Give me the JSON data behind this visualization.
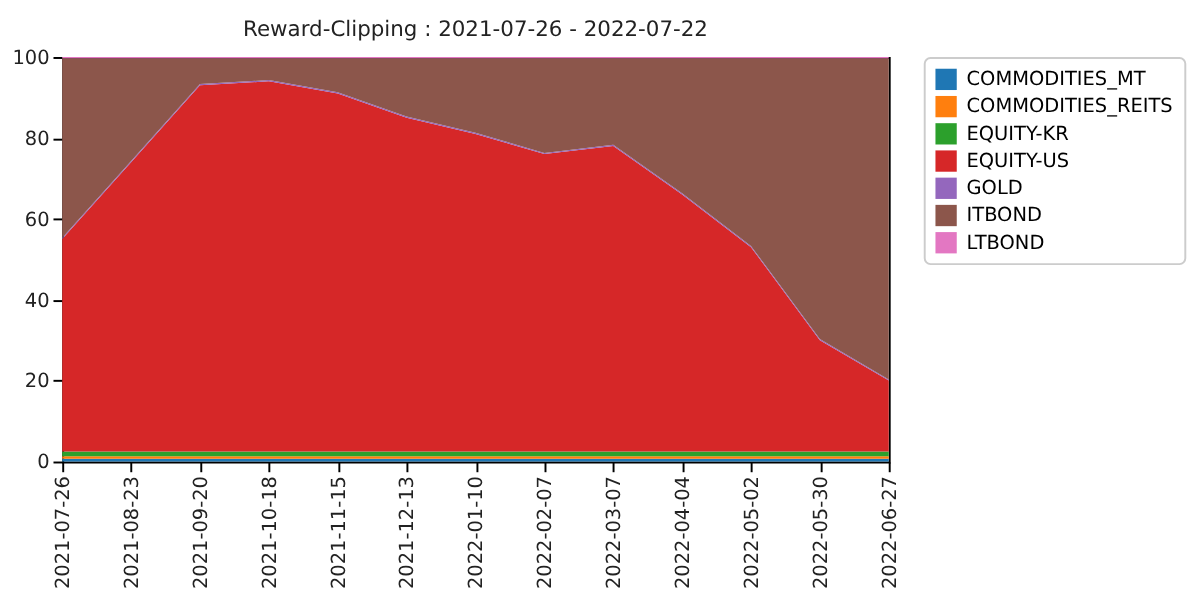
{
  "chart_data": {
    "type": "area",
    "title": "Reward-Clipping : 2021-07-26 - 2022-07-22",
    "stacked": true,
    "categories": [
      "2021-07-26",
      "2021-08-23",
      "2021-09-20",
      "2021-10-18",
      "2021-11-15",
      "2021-12-13",
      "2022-01-10",
      "2022-02-07",
      "2022-03-07",
      "2022-04-04",
      "2022-05-02",
      "2022-05-30",
      "2022-06-27"
    ],
    "series": [
      {
        "name": "COMMODITIES_MT",
        "color": "#1f77b4",
        "values": [
          0.7,
          0.7,
          0.7,
          0.7,
          0.7,
          0.7,
          0.7,
          0.7,
          0.7,
          0.7,
          0.7,
          0.7,
          0.7
        ]
      },
      {
        "name": "COMMODITIES_REITS",
        "color": "#ff7f0e",
        "values": [
          0.6,
          0.6,
          0.6,
          0.6,
          0.6,
          0.6,
          0.6,
          0.6,
          0.6,
          0.6,
          0.6,
          0.6,
          0.6
        ]
      },
      {
        "name": "EQUITY-KR",
        "color": "#2ca02c",
        "values": [
          1.2,
          1.2,
          1.2,
          1.2,
          1.2,
          1.2,
          1.2,
          1.2,
          1.2,
          1.2,
          1.2,
          1.2,
          1.2
        ]
      },
      {
        "name": "EQUITY-US",
        "color": "#d62728",
        "values": [
          52.5,
          71.5,
          90.5,
          91.5,
          88.5,
          82.5,
          78.5,
          73.5,
          75.5,
          63.5,
          50.5,
          27.5,
          17.5
        ]
      },
      {
        "name": "GOLD",
        "color": "#9467bd",
        "values": [
          0.3,
          0.3,
          0.3,
          0.3,
          0.3,
          0.3,
          0.3,
          0.3,
          0.3,
          0.3,
          0.3,
          0.3,
          0.3
        ]
      },
      {
        "name": "ITBOND",
        "color": "#8c564b",
        "values": [
          44.4,
          25.4,
          6.4,
          5.4,
          8.4,
          14.4,
          18.4,
          23.4,
          21.4,
          33.4,
          46.4,
          69.4,
          79.4
        ]
      },
      {
        "name": "LTBOND",
        "color": "#e377c2",
        "values": [
          0.3,
          0.3,
          0.3,
          0.3,
          0.3,
          0.3,
          0.3,
          0.3,
          0.3,
          0.3,
          0.3,
          0.3,
          0.3
        ]
      }
    ],
    "ylim": [
      0,
      100
    ],
    "yticks": [
      0,
      20,
      40,
      60,
      80,
      100
    ],
    "grid": false,
    "legend": "top right"
  }
}
